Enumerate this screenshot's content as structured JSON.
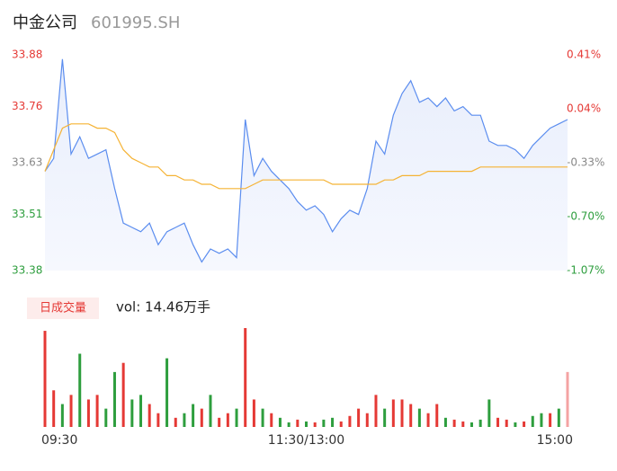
{
  "header": {
    "name": "中金公司",
    "code": "601995.SH"
  },
  "chart_data": [
    {
      "type": "line",
      "x": [
        0,
        4,
        8,
        12,
        16,
        20,
        24,
        28,
        32,
        36,
        40,
        44,
        48,
        52,
        56,
        60,
        64,
        68,
        72,
        76,
        80,
        84,
        88,
        92,
        96,
        100,
        104,
        108,
        112,
        116,
        120,
        124,
        128,
        132,
        136,
        140,
        144,
        148,
        152,
        156,
        160,
        164,
        168,
        172,
        176,
        180,
        184,
        188,
        192,
        196,
        200,
        204,
        208,
        212,
        216,
        220,
        224,
        228,
        232,
        236,
        240
      ],
      "xlim": [
        0,
        240
      ],
      "ylim": [
        33.38,
        33.88
      ],
      "yticks": [
        33.88,
        33.76,
        33.63,
        33.51,
        33.38
      ],
      "ytick_colors": [
        "#e53935",
        "#e53935",
        "#888888",
        "#2e9e3e",
        "#2e9e3e"
      ],
      "y2lim": [
        -1.07,
        0.41
      ],
      "y2ticks": [
        {
          "value": 0.41,
          "label": "0.41%"
        },
        {
          "value": 0.04,
          "label": "0.04%"
        },
        {
          "value": -0.33,
          "label": "-0.33%"
        },
        {
          "value": -0.7,
          "label": "-0.70%"
        },
        {
          "value": -1.07,
          "label": "-1.07%"
        }
      ],
      "series": [
        {
          "color": "#5b8def",
          "area": true,
          "values": [
            33.61,
            33.64,
            33.87,
            33.65,
            33.69,
            33.64,
            33.65,
            33.66,
            33.57,
            33.49,
            33.48,
            33.47,
            33.49,
            33.44,
            33.47,
            33.48,
            33.49,
            33.44,
            33.4,
            33.43,
            33.42,
            33.43,
            33.41,
            33.73,
            33.6,
            33.64,
            33.61,
            33.59,
            33.57,
            33.54,
            33.52,
            33.53,
            33.51,
            33.47,
            33.5,
            33.52,
            33.51,
            33.57,
            33.68,
            33.65,
            33.74,
            33.79,
            33.82,
            33.77,
            33.78,
            33.76,
            33.78,
            33.75,
            33.76,
            33.74,
            33.74,
            33.68,
            33.67,
            33.67,
            33.66,
            33.64,
            33.67,
            33.69,
            33.71,
            33.72,
            33.73
          ]
        },
        {
          "color": "#f5b335",
          "values": [
            33.61,
            33.66,
            33.71,
            33.72,
            33.72,
            33.72,
            33.71,
            33.71,
            33.7,
            33.66,
            33.64,
            33.63,
            33.62,
            33.62,
            33.6,
            33.6,
            33.59,
            33.59,
            33.58,
            33.58,
            33.57,
            33.57,
            33.57,
            33.57,
            33.58,
            33.59,
            33.59,
            33.59,
            33.59,
            33.59,
            33.59,
            33.59,
            33.59,
            33.58,
            33.58,
            33.58,
            33.58,
            33.58,
            33.58,
            33.59,
            33.59,
            33.6,
            33.6,
            33.6,
            33.61,
            33.61,
            33.61,
            33.61,
            33.61,
            33.61,
            33.62,
            33.62,
            33.62,
            33.62,
            33.62,
            33.62,
            33.62,
            33.62,
            33.62,
            33.62,
            33.62
          ]
        }
      ]
    },
    {
      "type": "bar",
      "label": "日成交量",
      "annotation": "vol: 14.46万手",
      "x": [
        0,
        4,
        8,
        12,
        16,
        20,
        24,
        28,
        32,
        36,
        40,
        44,
        48,
        52,
        56,
        60,
        64,
        68,
        72,
        76,
        80,
        84,
        88,
        92,
        96,
        100,
        104,
        108,
        112,
        116,
        120,
        124,
        128,
        132,
        136,
        140,
        144,
        148,
        152,
        156,
        160,
        164,
        168,
        172,
        176,
        180,
        184,
        188,
        192,
        196,
        200,
        204,
        208,
        212,
        216,
        220,
        224,
        228,
        232,
        236,
        240
      ],
      "xlim": [
        0,
        240
      ],
      "xticks": [
        {
          "value": 0,
          "label": "09:30"
        },
        {
          "value": 120,
          "label": "11:30/13:00"
        },
        {
          "value": 240,
          "label": "15:00"
        }
      ],
      "values": [
        105,
        40,
        25,
        35,
        80,
        30,
        35,
        20,
        60,
        70,
        30,
        35,
        25,
        15,
        75,
        10,
        15,
        25,
        20,
        35,
        10,
        15,
        20,
        108,
        30,
        20,
        15,
        10,
        5,
        8,
        6,
        5,
        8,
        10,
        6,
        12,
        20,
        15,
        35,
        20,
        30,
        30,
        25,
        20,
        15,
        25,
        10,
        8,
        6,
        5,
        8,
        30,
        10,
        8,
        5,
        6,
        12,
        15,
        15,
        20,
        60
      ],
      "colors": [
        "#e53935",
        "#e53935",
        "#2e9e3e",
        "#e53935",
        "#2e9e3e",
        "#e53935",
        "#e53935",
        "#2e9e3e",
        "#2e9e3e",
        "#e53935",
        "#2e9e3e",
        "#2e9e3e",
        "#e53935",
        "#e53935",
        "#2e9e3e",
        "#e53935",
        "#2e9e3e",
        "#2e9e3e",
        "#e53935",
        "#2e9e3e",
        "#e53935",
        "#e53935",
        "#2e9e3e",
        "#e53935",
        "#e53935",
        "#2e9e3e",
        "#e53935",
        "#2e9e3e",
        "#2e9e3e",
        "#e53935",
        "#2e9e3e",
        "#e53935",
        "#2e9e3e",
        "#2e9e3e",
        "#e53935",
        "#e53935",
        "#e53935",
        "#e53935",
        "#e53935",
        "#2e9e3e",
        "#e53935",
        "#e53935",
        "#e53935",
        "#2e9e3e",
        "#e53935",
        "#e53935",
        "#2e9e3e",
        "#e53935",
        "#e53935",
        "#2e9e3e",
        "#2e9e3e",
        "#2e9e3e",
        "#e53935",
        "#e53935",
        "#2e9e3e",
        "#e53935",
        "#2e9e3e",
        "#2e9e3e",
        "#e53935",
        "#2e9e3e",
        "#f4a3a3"
      ]
    }
  ]
}
